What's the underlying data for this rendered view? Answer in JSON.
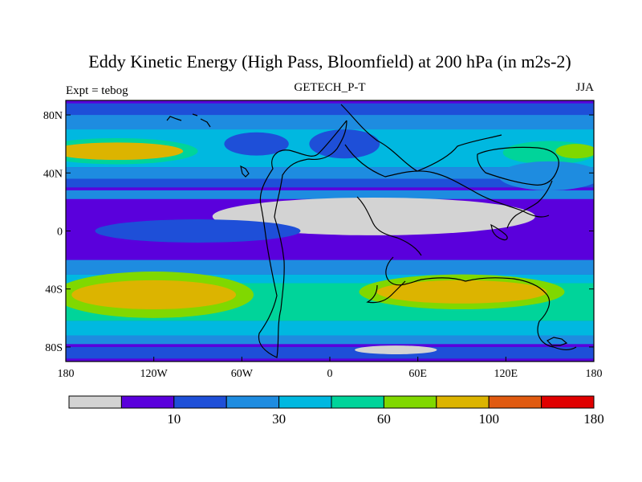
{
  "chart_data": {
    "type": "heatmap",
    "title": "Eddy Kinetic Energy (High Pass, Bloomfield) at 200 hPa (in m2s-2)",
    "left_string": "Expt = tebog",
    "center_string": "GETECH_P-T",
    "right_string": "JJA",
    "xlim": [
      -180,
      180
    ],
    "ylim": [
      -90,
      90
    ],
    "x_ticks": [
      {
        "value": -180,
        "label": "180"
      },
      {
        "value": -120,
        "label": "120W"
      },
      {
        "value": -60,
        "label": "60W"
      },
      {
        "value": 0,
        "label": "0"
      },
      {
        "value": 60,
        "label": "60E"
      },
      {
        "value": 120,
        "label": "120E"
      },
      {
        "value": 180,
        "label": "180"
      }
    ],
    "y_ticks": [
      {
        "value": 80,
        "label": "80N"
      },
      {
        "value": 40,
        "label": "40N"
      },
      {
        "value": 0,
        "label": "0"
      },
      {
        "value": -40,
        "label": "40S"
      },
      {
        "value": -80,
        "label": "80S"
      }
    ],
    "colorbar": {
      "colors": [
        "#d3d3d3",
        "#5a00dc",
        "#1e4fd8",
        "#1e8ce0",
        "#00b8e0",
        "#00d49a",
        "#80d800",
        "#dcb400",
        "#e05a10",
        "#e00000"
      ],
      "labels": [
        {
          "after_box": 2,
          "text": "10"
        },
        {
          "after_box": 4,
          "text": "30"
        },
        {
          "after_box": 6,
          "text": "60"
        },
        {
          "after_box": 8,
          "text": "100"
        },
        {
          "after_box": 10,
          "text": "180"
        }
      ]
    },
    "background_level": 1,
    "field_bands": [
      {
        "lat_range": [
          88,
          80
        ],
        "level": 2
      },
      {
        "lat_range": [
          80,
          68
        ],
        "level": 3
      },
      {
        "lat_range": [
          70,
          62
        ],
        "level": 4
      },
      {
        "lat_range": [
          64,
          44
        ],
        "level": 4
      },
      {
        "lat_range": [
          44,
          36
        ],
        "level": 3
      },
      {
        "lat_range": [
          36,
          30
        ],
        "level": 2
      },
      {
        "lat_range": [
          28,
          22
        ],
        "level": 3
      },
      {
        "lat_range": [
          -20,
          -30
        ],
        "level": 3
      },
      {
        "lat_range": [
          -30,
          -36
        ],
        "level": 4
      },
      {
        "lat_range": [
          -36,
          -62
        ],
        "level": 5
      },
      {
        "lat_range": [
          -62,
          -72
        ],
        "level": 4
      },
      {
        "lat_range": [
          -72,
          -78
        ],
        "level": 3
      },
      {
        "lat_range": [
          -80,
          -88
        ],
        "level": 2
      }
    ],
    "field_regions": [
      {
        "center": [
          -145,
          55
        ],
        "radius": [
          55,
          9
        ],
        "level": 5
      },
      {
        "center": [
          -145,
          55
        ],
        "radius": [
          45,
          6
        ],
        "level": 7
      },
      {
        "center": [
          150,
          54
        ],
        "radius": [
          32,
          8
        ],
        "level": 5
      },
      {
        "center": [
          168,
          55
        ],
        "radius": [
          14,
          5
        ],
        "level": 6
      },
      {
        "center": [
          150,
          38
        ],
        "radius": [
          35,
          10
        ],
        "level": 3
      },
      {
        "center": [
          -120,
          -44
        ],
        "radius": [
          68,
          16
        ],
        "level": 6
      },
      {
        "center": [
          -120,
          -44
        ],
        "radius": [
          56,
          10
        ],
        "level": 7
      },
      {
        "center": [
          90,
          -42
        ],
        "radius": [
          70,
          12
        ],
        "level": 6
      },
      {
        "center": [
          90,
          -42
        ],
        "radius": [
          58,
          8
        ],
        "level": 7
      },
      {
        "center": [
          -50,
          60
        ],
        "radius": [
          22,
          8
        ],
        "level": 2
      },
      {
        "center": [
          10,
          60
        ],
        "radius": [
          24,
          10
        ],
        "level": 2
      },
      {
        "center": [
          30,
          10
        ],
        "radius": [
          110,
          13
        ],
        "level": 0
      },
      {
        "center": [
          -90,
          0
        ],
        "radius": [
          70,
          8
        ],
        "level": 2
      },
      {
        "center": [
          45,
          -82
        ],
        "radius": [
          28,
          3
        ],
        "level": 0
      }
    ]
  }
}
